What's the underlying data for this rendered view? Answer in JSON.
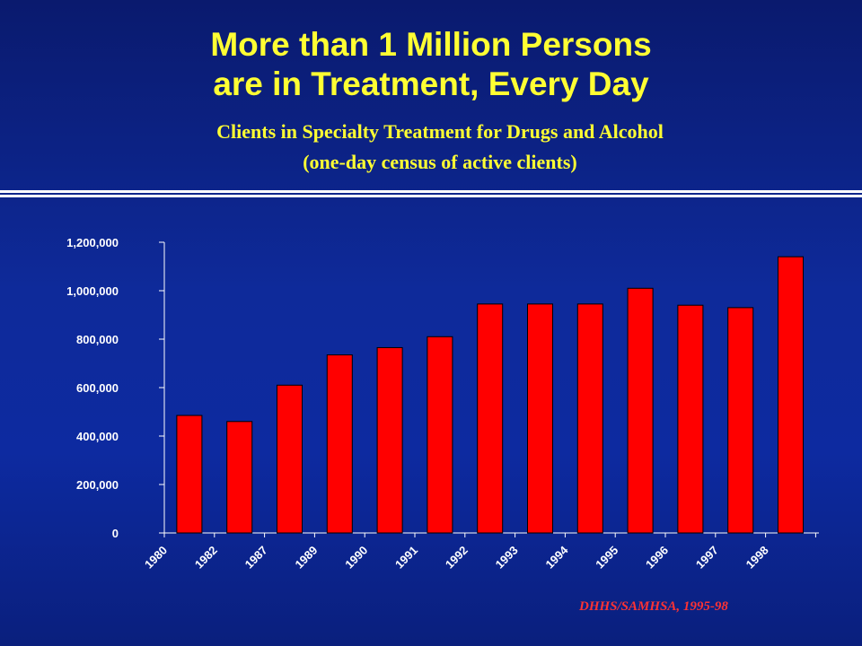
{
  "title_line1": "More than 1 Million Persons",
  "title_line2": "are in Treatment, Every Day",
  "subtitle_line1": "Clients in Specialty Treatment for Drugs and Alcohol",
  "subtitle_line2": "(one-day census of active clients)",
  "source": "DHHS/SAMHSA, 1995-98",
  "colors": {
    "bar": "#ff0000",
    "text_title": "#ffff33",
    "source": "#ff3333"
  },
  "chart_data": {
    "type": "bar",
    "categories": [
      "1980",
      "1982",
      "1987",
      "1989",
      "1990",
      "1991",
      "1992",
      "1993",
      "1994",
      "1995",
      "1996",
      "1997",
      "1998"
    ],
    "values": [
      485000,
      460000,
      610000,
      735000,
      765000,
      810000,
      945000,
      945000,
      945000,
      1010000,
      940000,
      930000,
      1140000
    ],
    "yticks": [
      "0",
      "200,000",
      "400,000",
      "600,000",
      "800,000",
      "1,000,000",
      "1,200,000"
    ],
    "ytick_values": [
      0,
      200000,
      400000,
      600000,
      800000,
      1000000,
      1200000
    ],
    "ylim": [
      0,
      1200000
    ],
    "grid": false,
    "legend": "none"
  }
}
